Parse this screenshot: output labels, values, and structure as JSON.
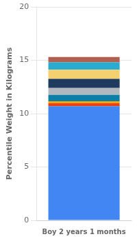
{
  "chart_data": {
    "type": "bar",
    "categories": [
      "Boy 2 years 1 months"
    ],
    "ylabel": "Percentile Weight in Kilograms",
    "stacked": true,
    "series": [
      {
        "color": "#4286f4",
        "values": [
          10.7
        ]
      },
      {
        "color": "#e84310",
        "values": [
          0.28
        ]
      },
      {
        "color": "#f0a500",
        "values": [
          0.18
        ]
      },
      {
        "color": "#0e7fa8",
        "values": [
          0.6
        ]
      },
      {
        "color": "#b2b8be",
        "values": [
          0.65
        ]
      },
      {
        "color": "#1e3a5f",
        "values": [
          0.85
        ]
      },
      {
        "color": "#f5d06e",
        "values": [
          0.85
        ]
      },
      {
        "color": "#2aabd2",
        "values": [
          0.7
        ]
      },
      {
        "color": "#b06050",
        "values": [
          0.49
        ]
      }
    ],
    "ylim": [
      0,
      20
    ],
    "yticks": [
      0,
      5,
      10,
      15,
      20
    ],
    "grid": true
  }
}
